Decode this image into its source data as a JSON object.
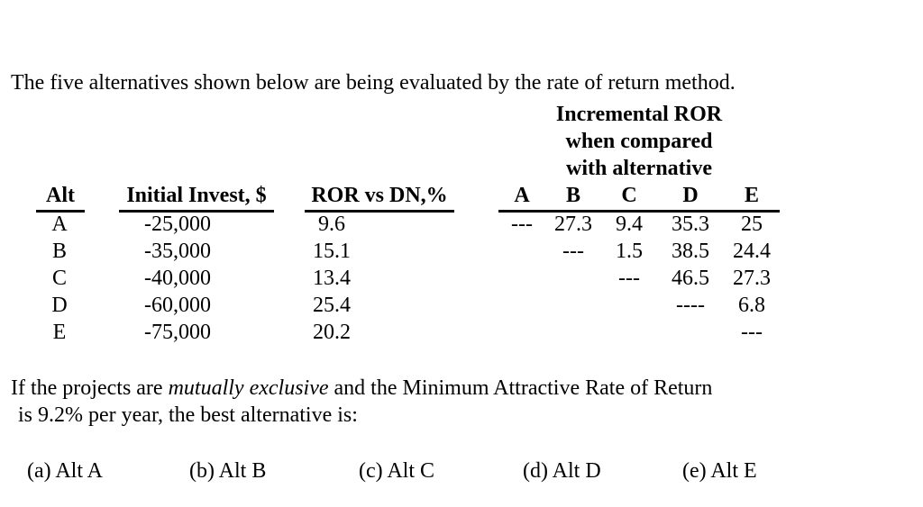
{
  "intro": "The five alternatives shown below are being evaluated by the rate of return method.",
  "table": {
    "group_header_lines": [
      "Incremental ROR",
      "when compared",
      "with alternative"
    ],
    "col_headers": {
      "alt": "Alt",
      "invest": "Initial Invest, $",
      "ror": "ROR vs DN,%"
    },
    "inc_col_headers": [
      "A",
      "B",
      "C",
      "D",
      "E"
    ],
    "rows": [
      {
        "alt": "A",
        "invest": "-25,000",
        "ror": "9.6",
        "inc": [
          "---",
          "27.3",
          "9.4",
          "35.3",
          "25"
        ]
      },
      {
        "alt": "B",
        "invest": "-35,000",
        "ror": "15.1",
        "inc": [
          "",
          "---",
          "1.5",
          "38.5",
          "24.4"
        ]
      },
      {
        "alt": "C",
        "invest": "-40,000",
        "ror": "13.4",
        "inc": [
          "",
          "",
          "---",
          "46.5",
          "27.3"
        ]
      },
      {
        "alt": "D",
        "invest": "-60,000",
        "ror": "25.4",
        "inc": [
          "",
          "",
          "",
          "----",
          "6.8"
        ]
      },
      {
        "alt": "E",
        "invest": "-75,000",
        "ror": "20.2",
        "inc": [
          "",
          "",
          "",
          "",
          "---"
        ]
      }
    ]
  },
  "question": {
    "line1_pre": "If the projects are ",
    "line1_italic": "mutually exclusive",
    "line1_post": " and the Minimum Attractive Rate of Return",
    "line2": "is 9.2% per year, the best alternative is:"
  },
  "options": [
    {
      "label": "(a) Alt A"
    },
    {
      "label": "(b) Alt B"
    },
    {
      "label": "(c) Alt C"
    },
    {
      "label": "(d) Alt D"
    },
    {
      "label": "(e) Alt E"
    }
  ]
}
